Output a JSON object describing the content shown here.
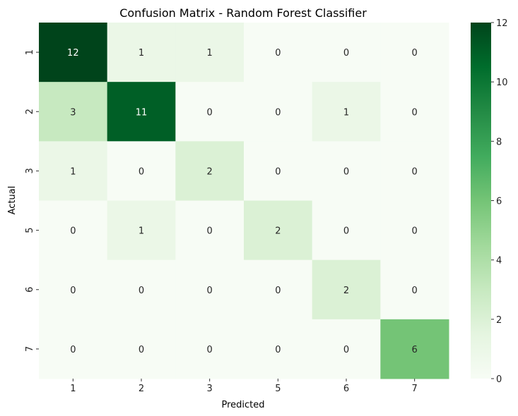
{
  "chart_data": {
    "type": "heatmap",
    "title": "Confusion Matrix - Random Forest Classifier",
    "xlabel": "Predicted",
    "ylabel": "Actual",
    "x_categories": [
      "1",
      "2",
      "3",
      "5",
      "6",
      "7"
    ],
    "y_categories": [
      "1",
      "2",
      "3",
      "5",
      "6",
      "7"
    ],
    "values": [
      [
        12,
        1,
        1,
        0,
        0,
        0
      ],
      [
        3,
        11,
        0,
        0,
        1,
        0
      ],
      [
        1,
        0,
        2,
        0,
        0,
        0
      ],
      [
        0,
        1,
        0,
        2,
        0,
        0
      ],
      [
        0,
        0,
        0,
        0,
        2,
        0
      ],
      [
        0,
        0,
        0,
        0,
        0,
        6
      ]
    ],
    "colorbar": {
      "colormap": "Greens",
      "range": [
        0,
        12
      ],
      "ticks": [
        "0",
        "2",
        "4",
        "6",
        "8",
        "10",
        "12"
      ]
    },
    "annotations": true
  }
}
